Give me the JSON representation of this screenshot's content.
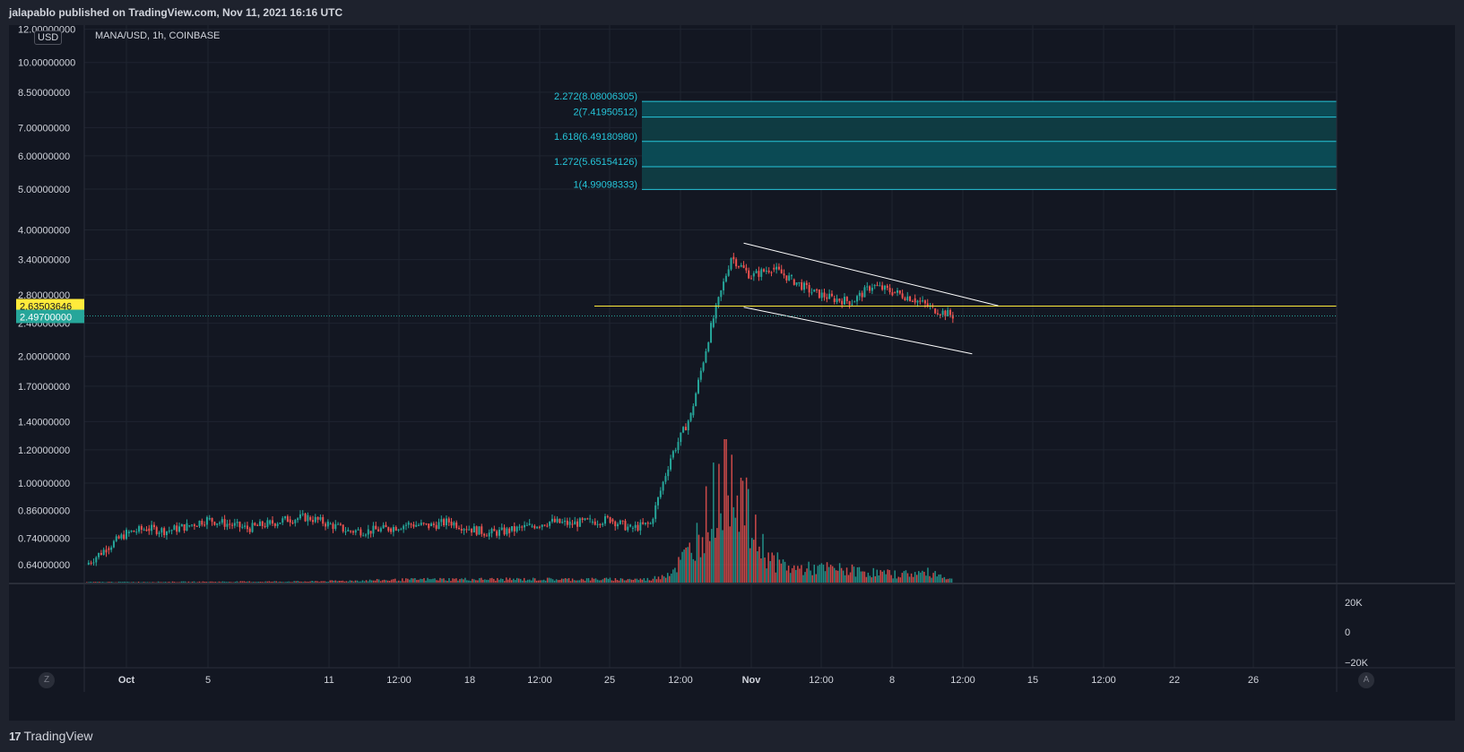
{
  "header": {
    "published": "jalapablo published on TradingView.com, Nov 11, 2021 16:16 UTC"
  },
  "symbol_line": "MANA/USD, 1h, COINBASE",
  "currency_button": "USD",
  "price_axis_labels": [
    "12.00000000",
    "10.00000000",
    "8.50000000",
    "7.00000000",
    "6.00000000",
    "5.00000000",
    "4.00000000",
    "3.40000000",
    "2.80000000",
    "2.40000000",
    "2.00000000",
    "1.70000000",
    "1.40000000",
    "1.20000000",
    "1.00000000",
    "0.86000000",
    "0.74000000",
    "0.64000000"
  ],
  "price_tags": {
    "line_level": "2.63503646",
    "last_price": "2.49700000"
  },
  "volume_axis_labels": [
    "20K",
    "0",
    "−20K"
  ],
  "time_axis_labels": [
    "Oct",
    "5",
    "11",
    "12:00",
    "18",
    "12:00",
    "25",
    "12:00",
    "Nov",
    "12:00",
    "8",
    "12:00",
    "15",
    "12:00",
    "22",
    "26"
  ],
  "buttons": {
    "zoom": "Z",
    "auto": "A"
  },
  "footer": {
    "brand": "TradingView",
    "brand_logo": "17"
  },
  "colors": {
    "background": "#131722",
    "up": "#26a69a",
    "down": "#ef5350",
    "fib_fill": "#0e4d55",
    "fib_line": "#26c6da",
    "level_line": "#ffeb3b",
    "channel": "#ffffff",
    "last_price_tag": "#26a69a",
    "level_tag": "#ffeb3b"
  },
  "chart_data": {
    "type": "candlestick",
    "title": "MANA/USD, 1h, COINBASE",
    "scale": "log",
    "ylim": [
      0.58,
      12.0
    ],
    "x_range": [
      "2021-09-29",
      "2021-11-30"
    ],
    "grid": true,
    "price_series": {
      "dates": [
        "2021-09-29",
        "2021-09-30",
        "2021-10-01",
        "2021-10-02",
        "2021-10-03",
        "2021-10-04",
        "2021-10-05",
        "2021-10-06",
        "2021-10-07",
        "2021-10-08",
        "2021-10-09",
        "2021-10-10",
        "2021-10-11",
        "2021-10-12",
        "2021-10-13",
        "2021-10-14",
        "2021-10-15",
        "2021-10-16",
        "2021-10-17",
        "2021-10-18",
        "2021-10-19",
        "2021-10-20",
        "2021-10-21",
        "2021-10-22",
        "2021-10-23",
        "2021-10-24",
        "2021-10-25",
        "2021-10-26",
        "2021-10-27",
        "2021-10-28",
        "2021-10-29",
        "2021-10-30",
        "2021-10-31",
        "2021-11-01",
        "2021-11-02",
        "2021-11-03",
        "2021-11-04",
        "2021-11-05",
        "2021-11-06",
        "2021-11-07",
        "2021-11-08",
        "2021-11-09",
        "2021-11-10",
        "2021-11-11"
      ],
      "close": [
        0.64,
        0.7,
        0.76,
        0.78,
        0.77,
        0.79,
        0.82,
        0.8,
        0.78,
        0.8,
        0.82,
        0.83,
        0.8,
        0.77,
        0.77,
        0.78,
        0.8,
        0.79,
        0.81,
        0.78,
        0.76,
        0.77,
        0.79,
        0.81,
        0.8,
        0.81,
        0.82,
        0.78,
        0.8,
        1.15,
        1.45,
        2.35,
        3.45,
        3.1,
        3.25,
        3.05,
        2.85,
        2.75,
        2.7,
        2.95,
        2.85,
        2.75,
        2.6,
        2.5
      ]
    },
    "volume": {
      "dates": [
        "2021-09-29",
        "2021-10-10",
        "2021-10-16",
        "2021-10-27",
        "2021-10-28",
        "2021-10-29",
        "2021-10-30",
        "2021-10-31",
        "2021-11-01",
        "2021-11-02",
        "2021-11-03",
        "2021-11-05",
        "2021-11-08",
        "2021-11-10",
        "2021-11-11"
      ],
      "values": [
        100,
        200,
        600,
        600,
        2000,
        6000,
        14000,
        22000,
        9000,
        4000,
        2500,
        2500,
        1500,
        1800,
        500
      ]
    },
    "fib_extension": {
      "levels": [
        {
          "ratio": "1",
          "price": 4.99098333,
          "label": "1(4.99098333)"
        },
        {
          "ratio": "1.272",
          "price": 5.65154126,
          "label": "1.272(5.65154126)"
        },
        {
          "ratio": "1.618",
          "price": 6.4918098,
          "label": "1.618(6.49180980)"
        },
        {
          "ratio": "2",
          "price": 7.41950512,
          "label": "2(7.41950512)"
        },
        {
          "ratio": "2.272",
          "price": 8.08006305,
          "label": "2.272(8.08006305)"
        }
      ]
    },
    "horizontal_line": {
      "price": 2.63503646
    },
    "channel": {
      "upper": [
        {
          "date": "2021-10-31T15:00",
          "price": 3.72
        },
        {
          "date": "2021-11-13T06:00",
          "price": 2.64
        }
      ],
      "lower": [
        {
          "date": "2021-10-31T15:00",
          "price": 2.62
        },
        {
          "date": "2021-11-11T23:00",
          "price": 2.03
        }
      ]
    },
    "last_price": 2.497
  }
}
